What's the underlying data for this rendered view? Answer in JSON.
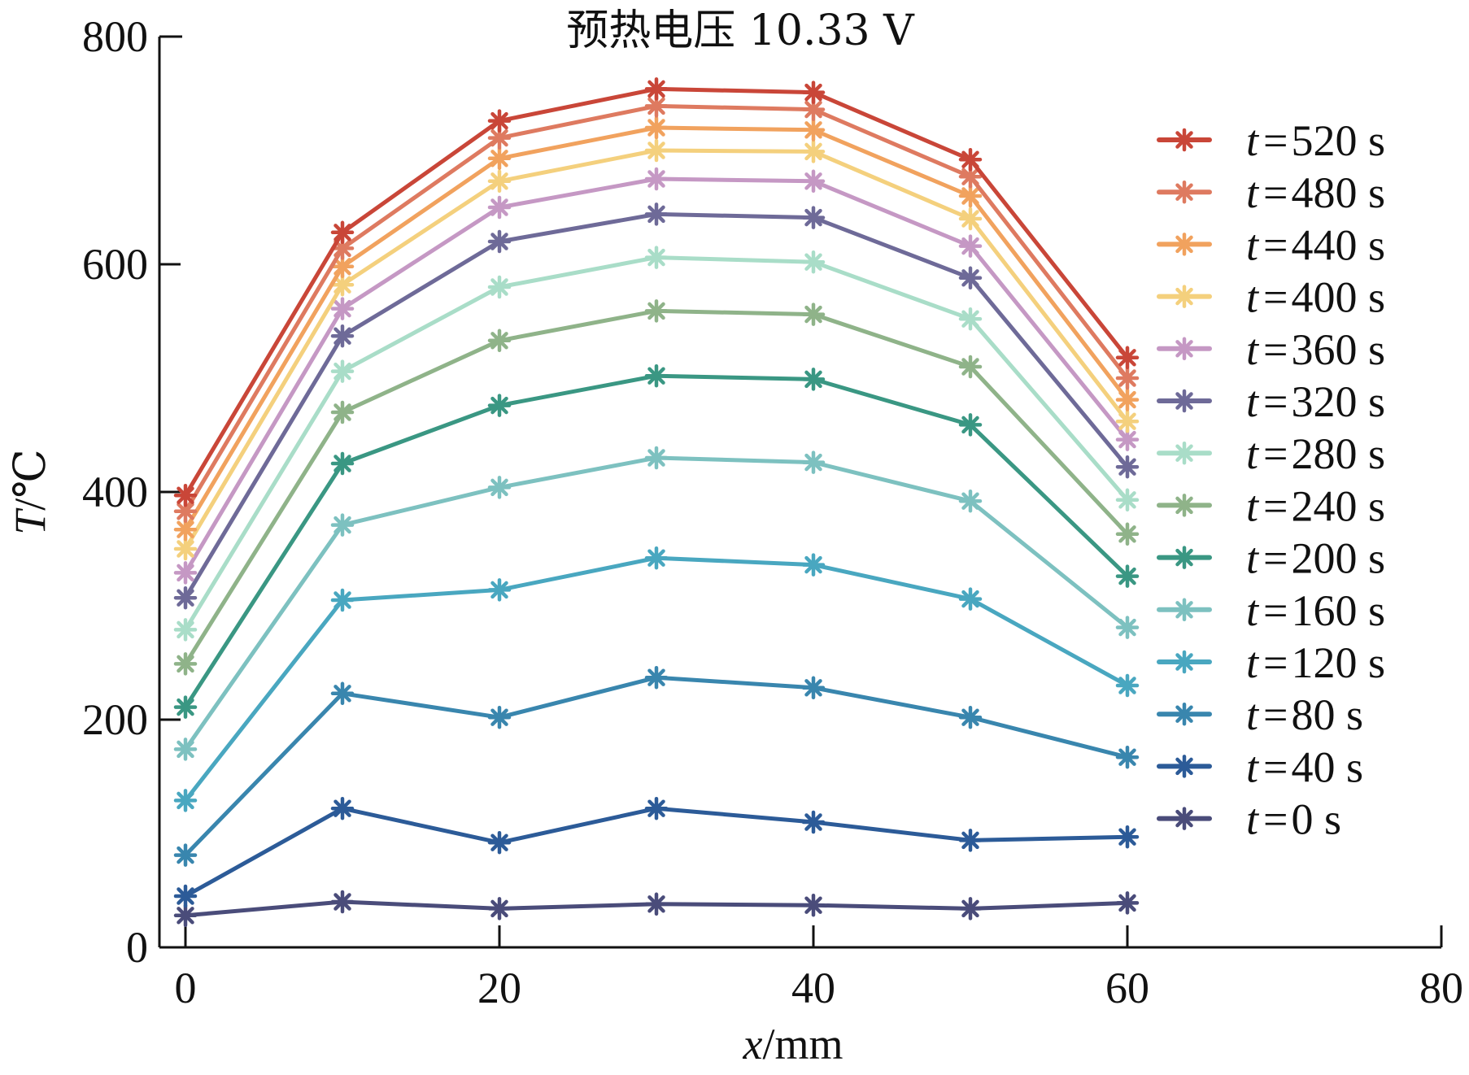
{
  "chart_data": {
    "type": "line",
    "title": "预热电压 10.33 V",
    "xlabel_var": "x",
    "xlabel_unit": "/mm",
    "ylabel_var": "T",
    "ylabel_unit": "/℃",
    "xlim": [
      0,
      80
    ],
    "ylim": [
      0,
      800
    ],
    "xticks": [
      0,
      20,
      40,
      60,
      80
    ],
    "yticks": [
      0,
      200,
      400,
      600,
      800
    ],
    "grid": false,
    "legend_position": "right",
    "x": [
      0,
      10,
      20,
      30,
      40,
      50,
      60
    ],
    "series": [
      {
        "name": "t = 520 s",
        "var": "t",
        "eq": "=",
        "value": "520 s",
        "color": "#c94638",
        "values": [
          397,
          628,
          726,
          754,
          751,
          692,
          518
        ]
      },
      {
        "name": "t = 480 s",
        "var": "t",
        "eq": "=",
        "value": "480 s",
        "color": "#de7a60",
        "values": [
          383,
          614,
          711,
          739,
          736,
          677,
          500
        ]
      },
      {
        "name": "t = 440 s",
        "var": "t",
        "eq": "=",
        "value": "440 s",
        "color": "#f1a25e",
        "values": [
          367,
          598,
          693,
          720,
          718,
          660,
          481
        ]
      },
      {
        "name": "t = 400 s",
        "var": "t",
        "eq": "=",
        "value": "400 s",
        "color": "#f4d07d",
        "values": [
          350,
          582,
          673,
          700,
          699,
          640,
          462
        ]
      },
      {
        "name": "t = 360 s",
        "var": "t",
        "eq": "=",
        "value": "360 s",
        "color": "#c598c4",
        "values": [
          329,
          561,
          650,
          675,
          673,
          616,
          446
        ]
      },
      {
        "name": "t = 320 s",
        "var": "t",
        "eq": "=",
        "value": "320 s",
        "color": "#6e6a98",
        "values": [
          307,
          537,
          620,
          644,
          641,
          588,
          422
        ]
      },
      {
        "name": "t = 280 s",
        "var": "t",
        "eq": "=",
        "value": "280 s",
        "color": "#a9ddc8",
        "values": [
          279,
          506,
          580,
          606,
          602,
          552,
          393
        ]
      },
      {
        "name": "t = 240 s",
        "var": "t",
        "eq": "=",
        "value": "240 s",
        "color": "#8fb389",
        "values": [
          249,
          470,
          533,
          559,
          556,
          510,
          363
        ]
      },
      {
        "name": "t = 200 s",
        "var": "t",
        "eq": "=",
        "value": "200 s",
        "color": "#3a9783",
        "values": [
          211,
          425,
          476,
          502,
          499,
          459,
          326
        ]
      },
      {
        "name": "t = 160 s",
        "var": "t",
        "eq": "=",
        "value": "160 s",
        "color": "#7dc1c0",
        "values": [
          174,
          371,
          404,
          430,
          426,
          392,
          281
        ]
      },
      {
        "name": "t = 120 s",
        "var": "t",
        "eq": "=",
        "value": "120 s",
        "color": "#49a7c0",
        "values": [
          129,
          305,
          314,
          342,
          336,
          306,
          230
        ]
      },
      {
        "name": "t = 80 s",
        "var": "t",
        "eq": "=",
        "value": "80 s",
        "color": "#3986ae",
        "values": [
          81,
          223,
          202,
          237,
          228,
          202,
          167
        ]
      },
      {
        "name": "t = 40 s",
        "var": "t",
        "eq": "=",
        "value": "40 s",
        "color": "#2c5b98",
        "values": [
          45,
          122,
          92,
          122,
          110,
          94,
          97
        ]
      },
      {
        "name": "t = 0 s",
        "var": "t",
        "eq": "=",
        "value": "0 s",
        "color": "#4a4c7a",
        "values": [
          28,
          40,
          34,
          38,
          37,
          34,
          39
        ]
      }
    ]
  }
}
